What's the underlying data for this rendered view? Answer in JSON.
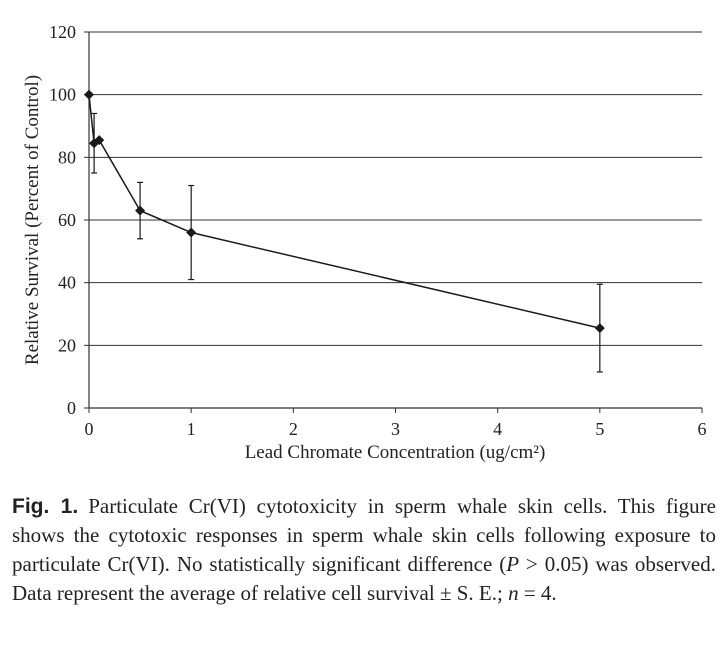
{
  "chart_data": {
    "type": "line",
    "xlabel": "Lead Chromate Concentration (ug/cm²)",
    "ylabel": "Relative Survival (Percent of Control)",
    "xlim": [
      0,
      6
    ],
    "ylim": [
      0,
      120
    ],
    "x_ticks": [
      "0",
      "1",
      "2",
      "3",
      "4",
      "5",
      "6"
    ],
    "y_ticks": [
      "0",
      "20",
      "40",
      "60",
      "80",
      "100",
      "120"
    ],
    "grid": "horizontal",
    "series": [
      {
        "x": [
          0,
          0.05,
          0.1,
          0.5,
          1,
          5
        ],
        "y": [
          100,
          84.5,
          85.5,
          63,
          56,
          25.5
        ],
        "error": [
          0,
          9.5,
          0,
          9,
          15,
          14
        ],
        "marker": "diamond",
        "color": "#1a1a1a"
      }
    ]
  },
  "caption": {
    "label": "Fig. 1.",
    "text1": "Particulate Cr(VI) cytotoxicity in sperm whale skin cells. This figure shows the cytotoxic responses in sperm whale skin cells following exposure to particulate Cr(VI). No statistically significant difference (",
    "p_symbol": "P",
    "text2": " > 0.05) was observed. Data represent the average of relative cell survival ± S. E.; ",
    "n_symbol": "n",
    "text3": " = 4."
  }
}
